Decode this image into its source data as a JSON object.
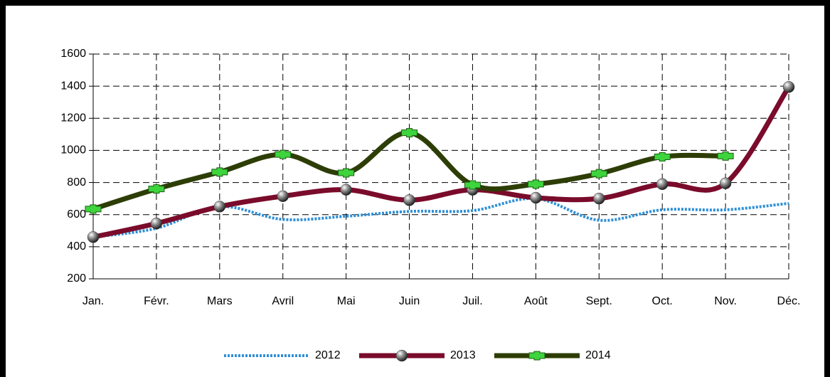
{
  "chart_data": {
    "type": "line",
    "categories": [
      "Jan.",
      "Févr.",
      "Mars",
      "Avril",
      "Mai",
      "Juin",
      "Juil.",
      "Août",
      "Sept.",
      "Oct.",
      "Nov.",
      "Déc."
    ],
    "series": [
      {
        "name": "2012",
        "color": "#2e8fd6",
        "values": [
          460,
          515,
          650,
          570,
          590,
          620,
          625,
          700,
          565,
          630,
          630,
          670
        ]
      },
      {
        "name": "2013",
        "color": "#7a0b2b",
        "values": [
          460,
          545,
          650,
          715,
          755,
          690,
          755,
          705,
          700,
          790,
          795,
          1395
        ]
      },
      {
        "name": "2014",
        "color": "#2d3d06",
        "values": [
          635,
          760,
          865,
          975,
          860,
          1110,
          785,
          790,
          855,
          960,
          965,
          null
        ]
      }
    ],
    "ylim": [
      200,
      1600
    ],
    "yticks": [
      200,
      400,
      600,
      800,
      1000,
      1200,
      1400,
      1600
    ],
    "grid": true,
    "legend": "bottom"
  }
}
